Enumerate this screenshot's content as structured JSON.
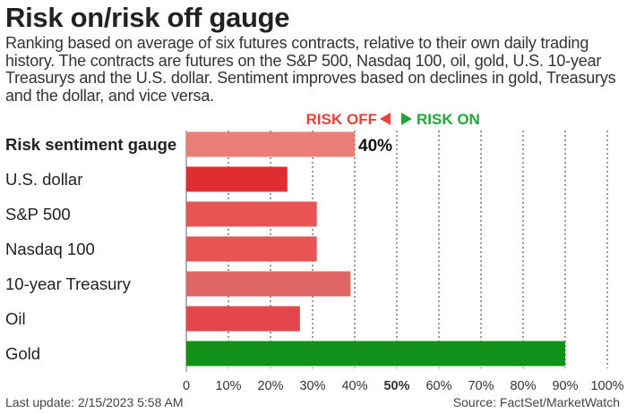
{
  "title": "Risk on/risk off gauge",
  "subtitle": "Ranking based on average of six futures contracts, relative to their own daily trading history. The contracts are futures on the S&P 500, Nasdaq 100, oil, gold, U.S. 10-year Treasurys and the U.S. dollar. Sentiment improves based on declines in gold, Treasurys and the dollar, and vice versa.",
  "legend": {
    "risk_off": "RISK OFF",
    "risk_on": "RISK ON",
    "risk_off_color": "#e8413c",
    "risk_on_color": "#22a63a"
  },
  "footer": {
    "last_update": "Last update: 2/15/2023 5:58 AM",
    "source": "Source: FactSet/MarketWatch"
  },
  "chart_data": {
    "type": "bar",
    "orientation": "horizontal",
    "categories": [
      "Risk sentiment gauge",
      "U.S. dollar",
      "S&P 500",
      "Nasdaq 100",
      "10-year Treasury",
      "Oil",
      "Gold"
    ],
    "values": [
      40,
      24,
      31,
      31,
      39,
      27,
      90
    ],
    "colors": [
      "#ec7e78",
      "#e02d31",
      "#e85354",
      "#e85354",
      "#e06565",
      "#e4474b",
      "#11901a"
    ],
    "data_labels": [
      "40%",
      "",
      "",
      "",
      "",
      "",
      ""
    ],
    "x_ticks": [
      0,
      10,
      20,
      30,
      40,
      50,
      60,
      70,
      80,
      90,
      100
    ],
    "x_tick_labels": [
      "0",
      "10%",
      "20%",
      "30%",
      "40%",
      "50%",
      "60%",
      "70%",
      "80%",
      "90%",
      "100%"
    ],
    "xlim": [
      0,
      100
    ],
    "highlight_tick": 50,
    "grid": "vertical dotted",
    "bold_category": "Risk sentiment gauge"
  }
}
